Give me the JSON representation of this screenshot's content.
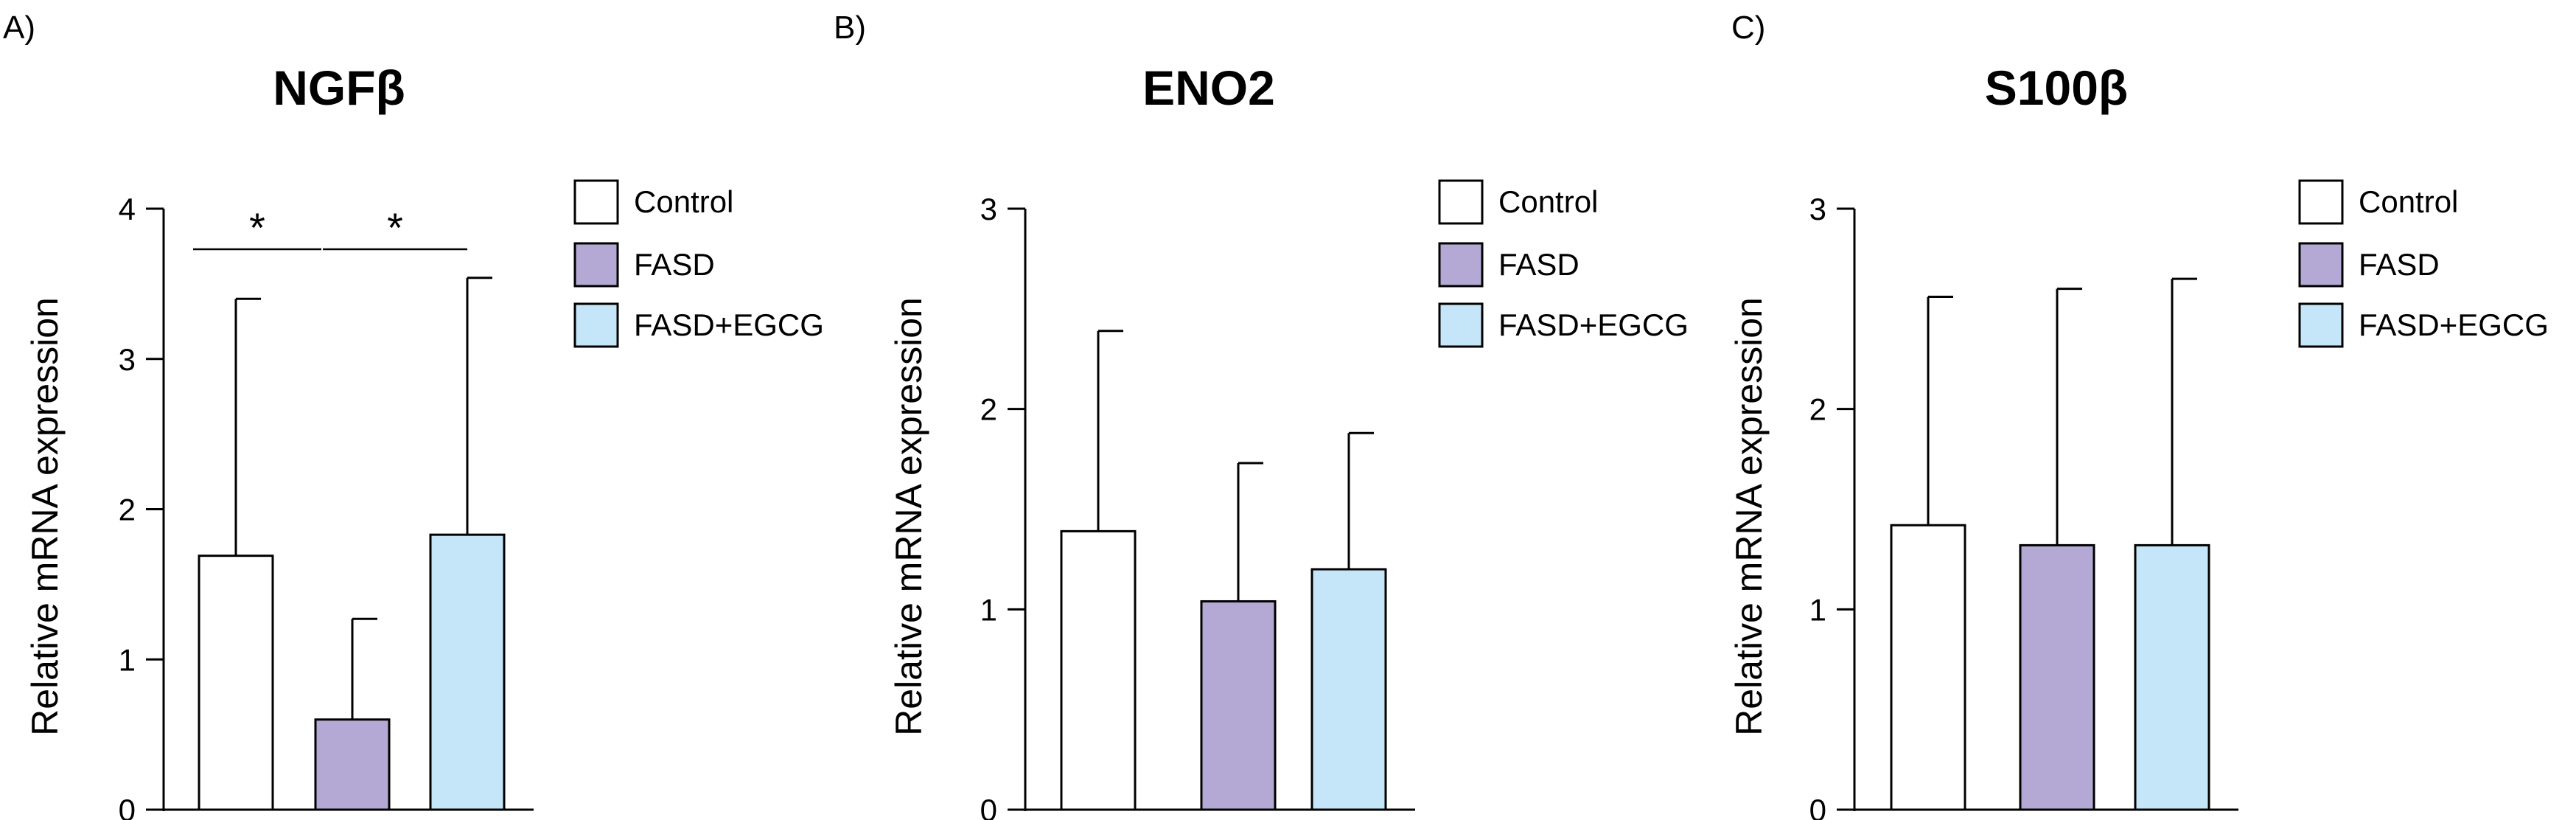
{
  "chart_data": [
    {
      "type": "bar",
      "panel_label": "A)",
      "title": "NGFβ",
      "ylabel": "Relative mRNA expression",
      "ylim": [
        0,
        4
      ],
      "yticks": [
        "0",
        "1",
        "2",
        "3",
        "4"
      ],
      "categories": [
        "Control",
        "FASD",
        "FASD+EGCG"
      ],
      "values": [
        1.69,
        0.6,
        1.83
      ],
      "errors": [
        1.71,
        0.67,
        1.71
      ],
      "significance": [
        {
          "between": [
            0,
            1
          ],
          "label": "*"
        },
        {
          "between": [
            1,
            2
          ],
          "label": "*"
        }
      ],
      "legend": [
        "Control",
        "FASD",
        "FASD+EGCG"
      ],
      "legend_position": "right"
    },
    {
      "type": "bar",
      "panel_label": "B)",
      "title": "ENO2",
      "ylabel": "Relative mRNA expression",
      "ylim": [
        0,
        3
      ],
      "yticks": [
        "0",
        "1",
        "2",
        "3"
      ],
      "categories": [
        "Control",
        "FASD",
        "FASD+EGCG"
      ],
      "values": [
        1.39,
        1.04,
        1.2
      ],
      "errors": [
        1.0,
        0.69,
        0.68
      ],
      "significance": [],
      "legend": [
        "Control",
        "FASD",
        "FASD+EGCG"
      ],
      "legend_position": "right"
    },
    {
      "type": "bar",
      "panel_label": "C)",
      "title": "S100β",
      "ylabel": "Relative mRNA expression",
      "ylim": [
        0,
        3
      ],
      "yticks": [
        "0",
        "1",
        "2",
        "3"
      ],
      "categories": [
        "Control",
        "FASD",
        "FASD+EGCG"
      ],
      "values": [
        1.42,
        1.32,
        1.32
      ],
      "errors": [
        1.14,
        1.28,
        1.33
      ],
      "significance": [],
      "legend": [
        "Control",
        "FASD",
        "FASD+EGCG"
      ],
      "legend_position": "right"
    }
  ],
  "colors": {
    "Control": "#ffffff",
    "FASD": "#b3a9d4",
    "FASD+EGCG": "#c4e6f8",
    "stroke": "#000000"
  }
}
